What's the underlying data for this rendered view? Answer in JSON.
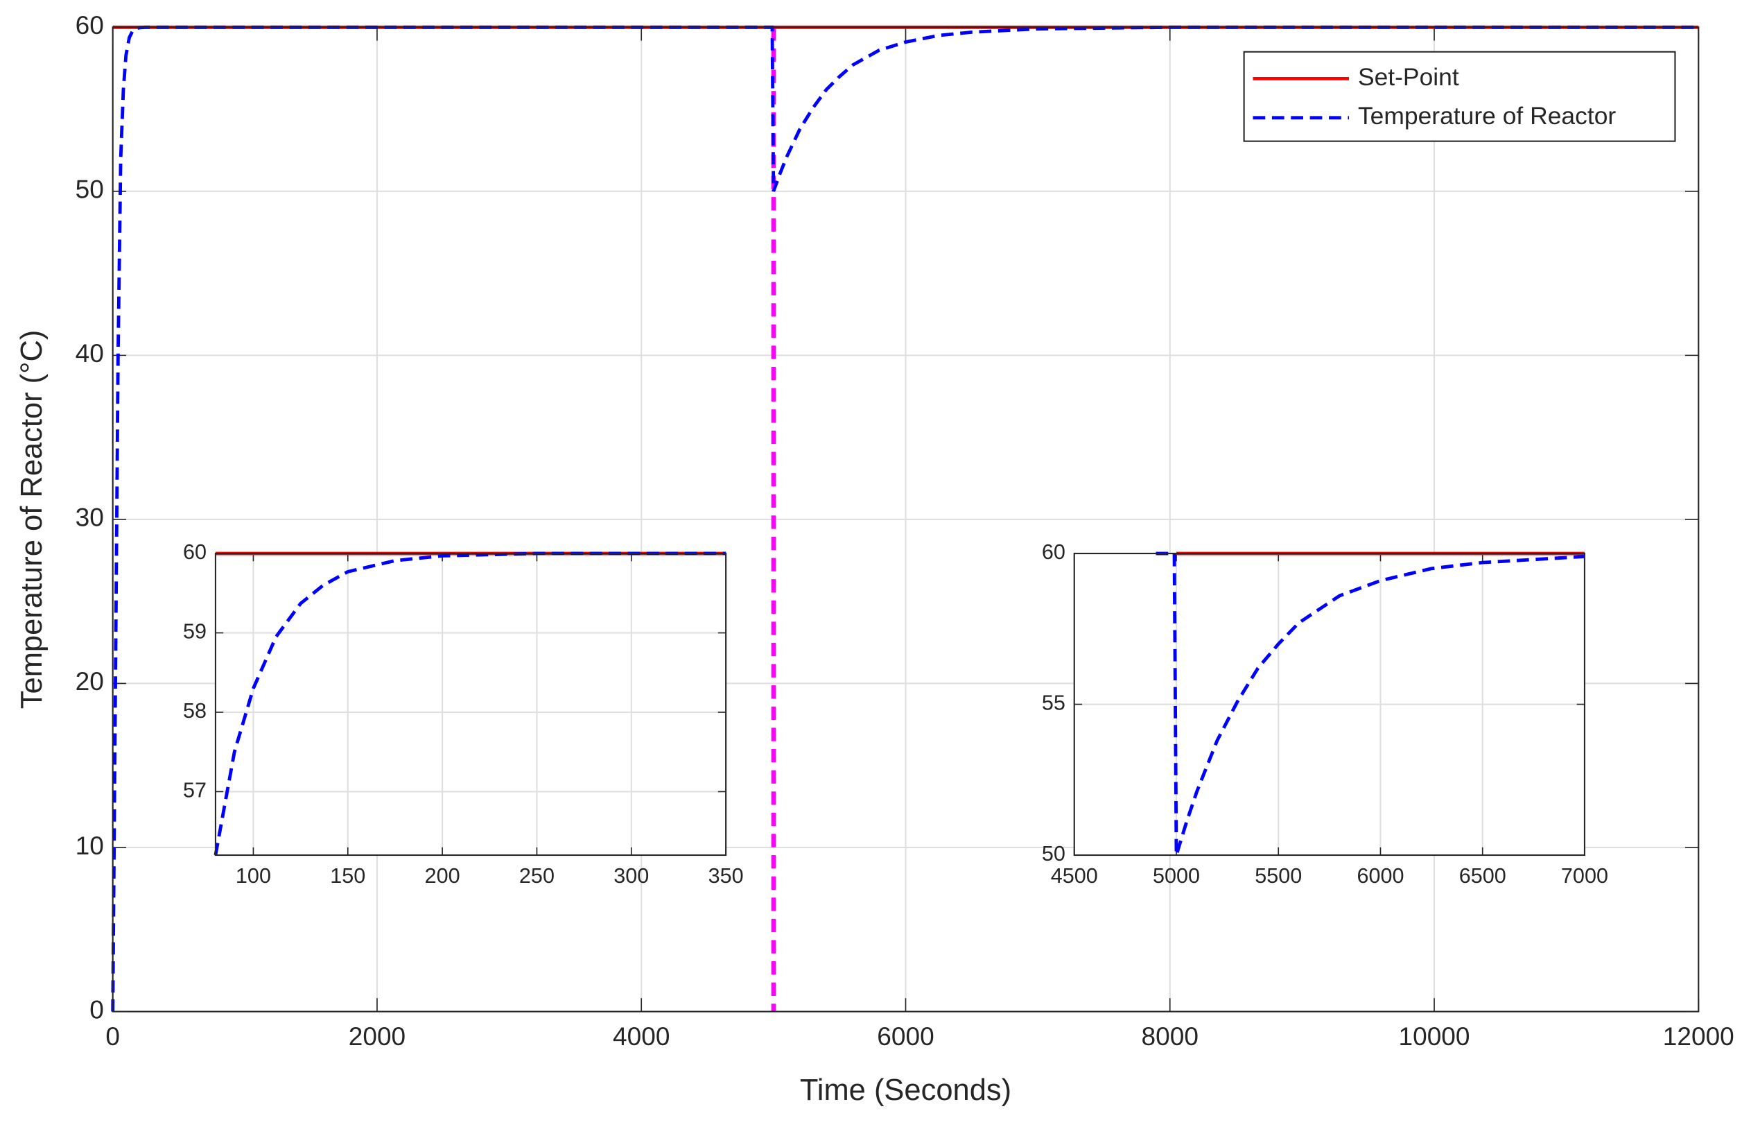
{
  "chart_data": [
    {
      "type": "line",
      "xlabel": "Time (Seconds)",
      "ylabel": "Temperature of Reactor (°C)",
      "xlim": [
        0,
        12000
      ],
      "xticks": [
        0,
        2000,
        4000,
        6000,
        8000,
        10000,
        12000
      ],
      "ylim": [
        0,
        60
      ],
      "yticks": [
        0,
        10,
        20,
        30,
        40,
        50,
        60
      ],
      "grid": true,
      "legend": "northeast",
      "vline": {
        "x": 5000,
        "color": "#ff00ff"
      },
      "series": [
        {
          "name": "Set-Point",
          "color": "#ff0000",
          "linestyle": "solid",
          "x": [
            0,
            12000
          ],
          "values": [
            60,
            60
          ]
        },
        {
          "name": "Temperature of Reactor",
          "color": "#0000ff",
          "linestyle": "dashed",
          "x": [
            0,
            20,
            40,
            60,
            80,
            100,
            125,
            150,
            175,
            200,
            250,
            350,
            4990,
            5000,
            5050,
            5100,
            5200,
            5300,
            5400,
            5500,
            5600,
            5800,
            6000,
            6250,
            6500,
            7000,
            8000,
            12000
          ],
          "values": [
            0,
            20,
            40,
            52,
            56.2,
            58.3,
            59.37,
            59.77,
            59.91,
            59.97,
            60,
            60,
            60,
            50,
            51.1,
            52.1,
            53.8,
            55.1,
            56.2,
            57,
            57.7,
            58.6,
            59.1,
            59.5,
            59.7,
            59.9,
            60,
            60
          ]
        }
      ]
    },
    {
      "type": "line",
      "xlim": [
        80,
        350
      ],
      "xticks": [
        100,
        150,
        200,
        250,
        300,
        350
      ],
      "ylim": [
        56.2,
        60
      ],
      "yticks": [
        57,
        58,
        59,
        60
      ],
      "grid": true,
      "series": [
        {
          "color": "#ff0000",
          "linestyle": "solid",
          "x": [
            80,
            350
          ],
          "values": [
            60,
            60
          ]
        },
        {
          "color": "#0000ff",
          "linestyle": "dashed",
          "x": [
            80,
            90,
            100,
            112,
            125,
            137,
            150,
            175,
            200,
            250,
            350
          ],
          "values": [
            56.2,
            57.5,
            58.3,
            58.95,
            59.37,
            59.6,
            59.77,
            59.91,
            59.97,
            60,
            60
          ]
        }
      ]
    },
    {
      "type": "line",
      "xlim": [
        4500,
        7000
      ],
      "xticks": [
        4500,
        5000,
        5500,
        6000,
        6500,
        7000
      ],
      "ylim": [
        50,
        60
      ],
      "yticks": [
        50,
        55,
        60
      ],
      "grid": true,
      "series": [
        {
          "color": "#ff0000",
          "linestyle": "solid",
          "x": [
            5000,
            7000
          ],
          "values": [
            60,
            60
          ]
        },
        {
          "color": "#0000ff",
          "linestyle": "dashed",
          "x": [
            4900,
            4990,
            5000,
            5050,
            5100,
            5200,
            5300,
            5400,
            5500,
            5600,
            5800,
            6000,
            6250,
            6500,
            7000
          ],
          "values": [
            60,
            60,
            50,
            51.1,
            52.1,
            53.8,
            55.1,
            56.2,
            57,
            57.7,
            58.6,
            59.1,
            59.5,
            59.7,
            59.9
          ]
        }
      ]
    }
  ]
}
